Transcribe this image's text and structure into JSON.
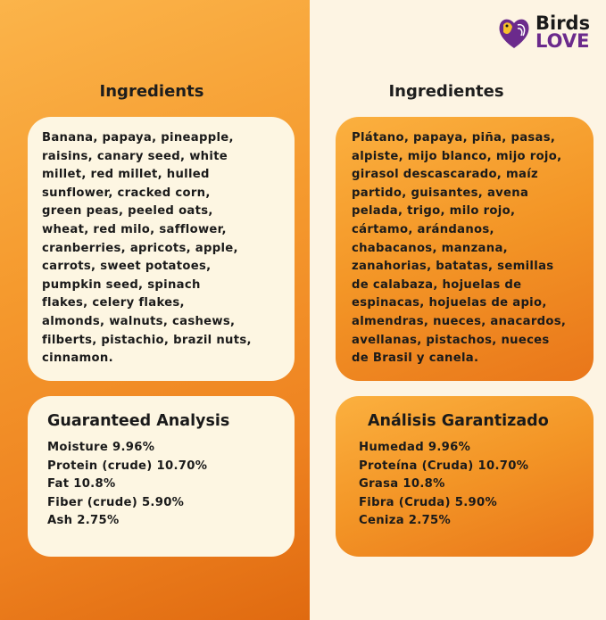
{
  "brand": {
    "line1": "Birds",
    "line2": "LOVE",
    "colors": {
      "purple": "#6b2a8c",
      "yellow": "#f6c02b"
    }
  },
  "en": {
    "heading": "Ingredients",
    "ingredients": [
      "Banana, papaya, pineapple,",
      "raisins, canary seed, white",
      "millet, red millet, hulled",
      "sunflower, cracked corn,",
      "green peas, peeled oats,",
      "wheat, red milo, safflower,",
      "cranberries, apricots, apple,",
      "carrots, sweet potatoes,",
      "pumpkin seed, spinach",
      "flakes, celery flakes,",
      "almonds, walnuts, cashews,",
      "filberts, pistachio, brazil nuts,",
      "cinnamon."
    ],
    "analysis_title": "Guaranteed Analysis",
    "analysis": [
      "Moisture  9.96%",
      "Protein (crude) 10.70%",
      "Fat 10.8%",
      "Fiber (crude)  5.90%",
      "Ash 2.75%"
    ]
  },
  "es": {
    "heading": "Ingredientes",
    "ingredients": [
      "Plátano, papaya, piña, pasas,",
      "alpiste, mijo blanco, mijo rojo,",
      "girasol descascarado, maíz",
      "partido, guisantes, avena",
      "pelada, trigo, milo rojo,",
      "cártamo, arándanos,",
      "chabacanos, manzana,",
      "zanahorias, batatas, semillas",
      "de calabaza, hojuelas de",
      "espinacas, hojuelas de apio,",
      "almendras, nueces, anacardos,",
      "avellanas, pistachos, nueces",
      "de Brasil y canela."
    ],
    "analysis_title": "Análisis Garantizado",
    "analysis": [
      "Humedad  9.96%",
      "Proteína (Cruda) 10.70%",
      "Grasa 10.8%",
      "Fibra (Cruda) 5.90%",
      "Ceniza  2.75%"
    ]
  }
}
